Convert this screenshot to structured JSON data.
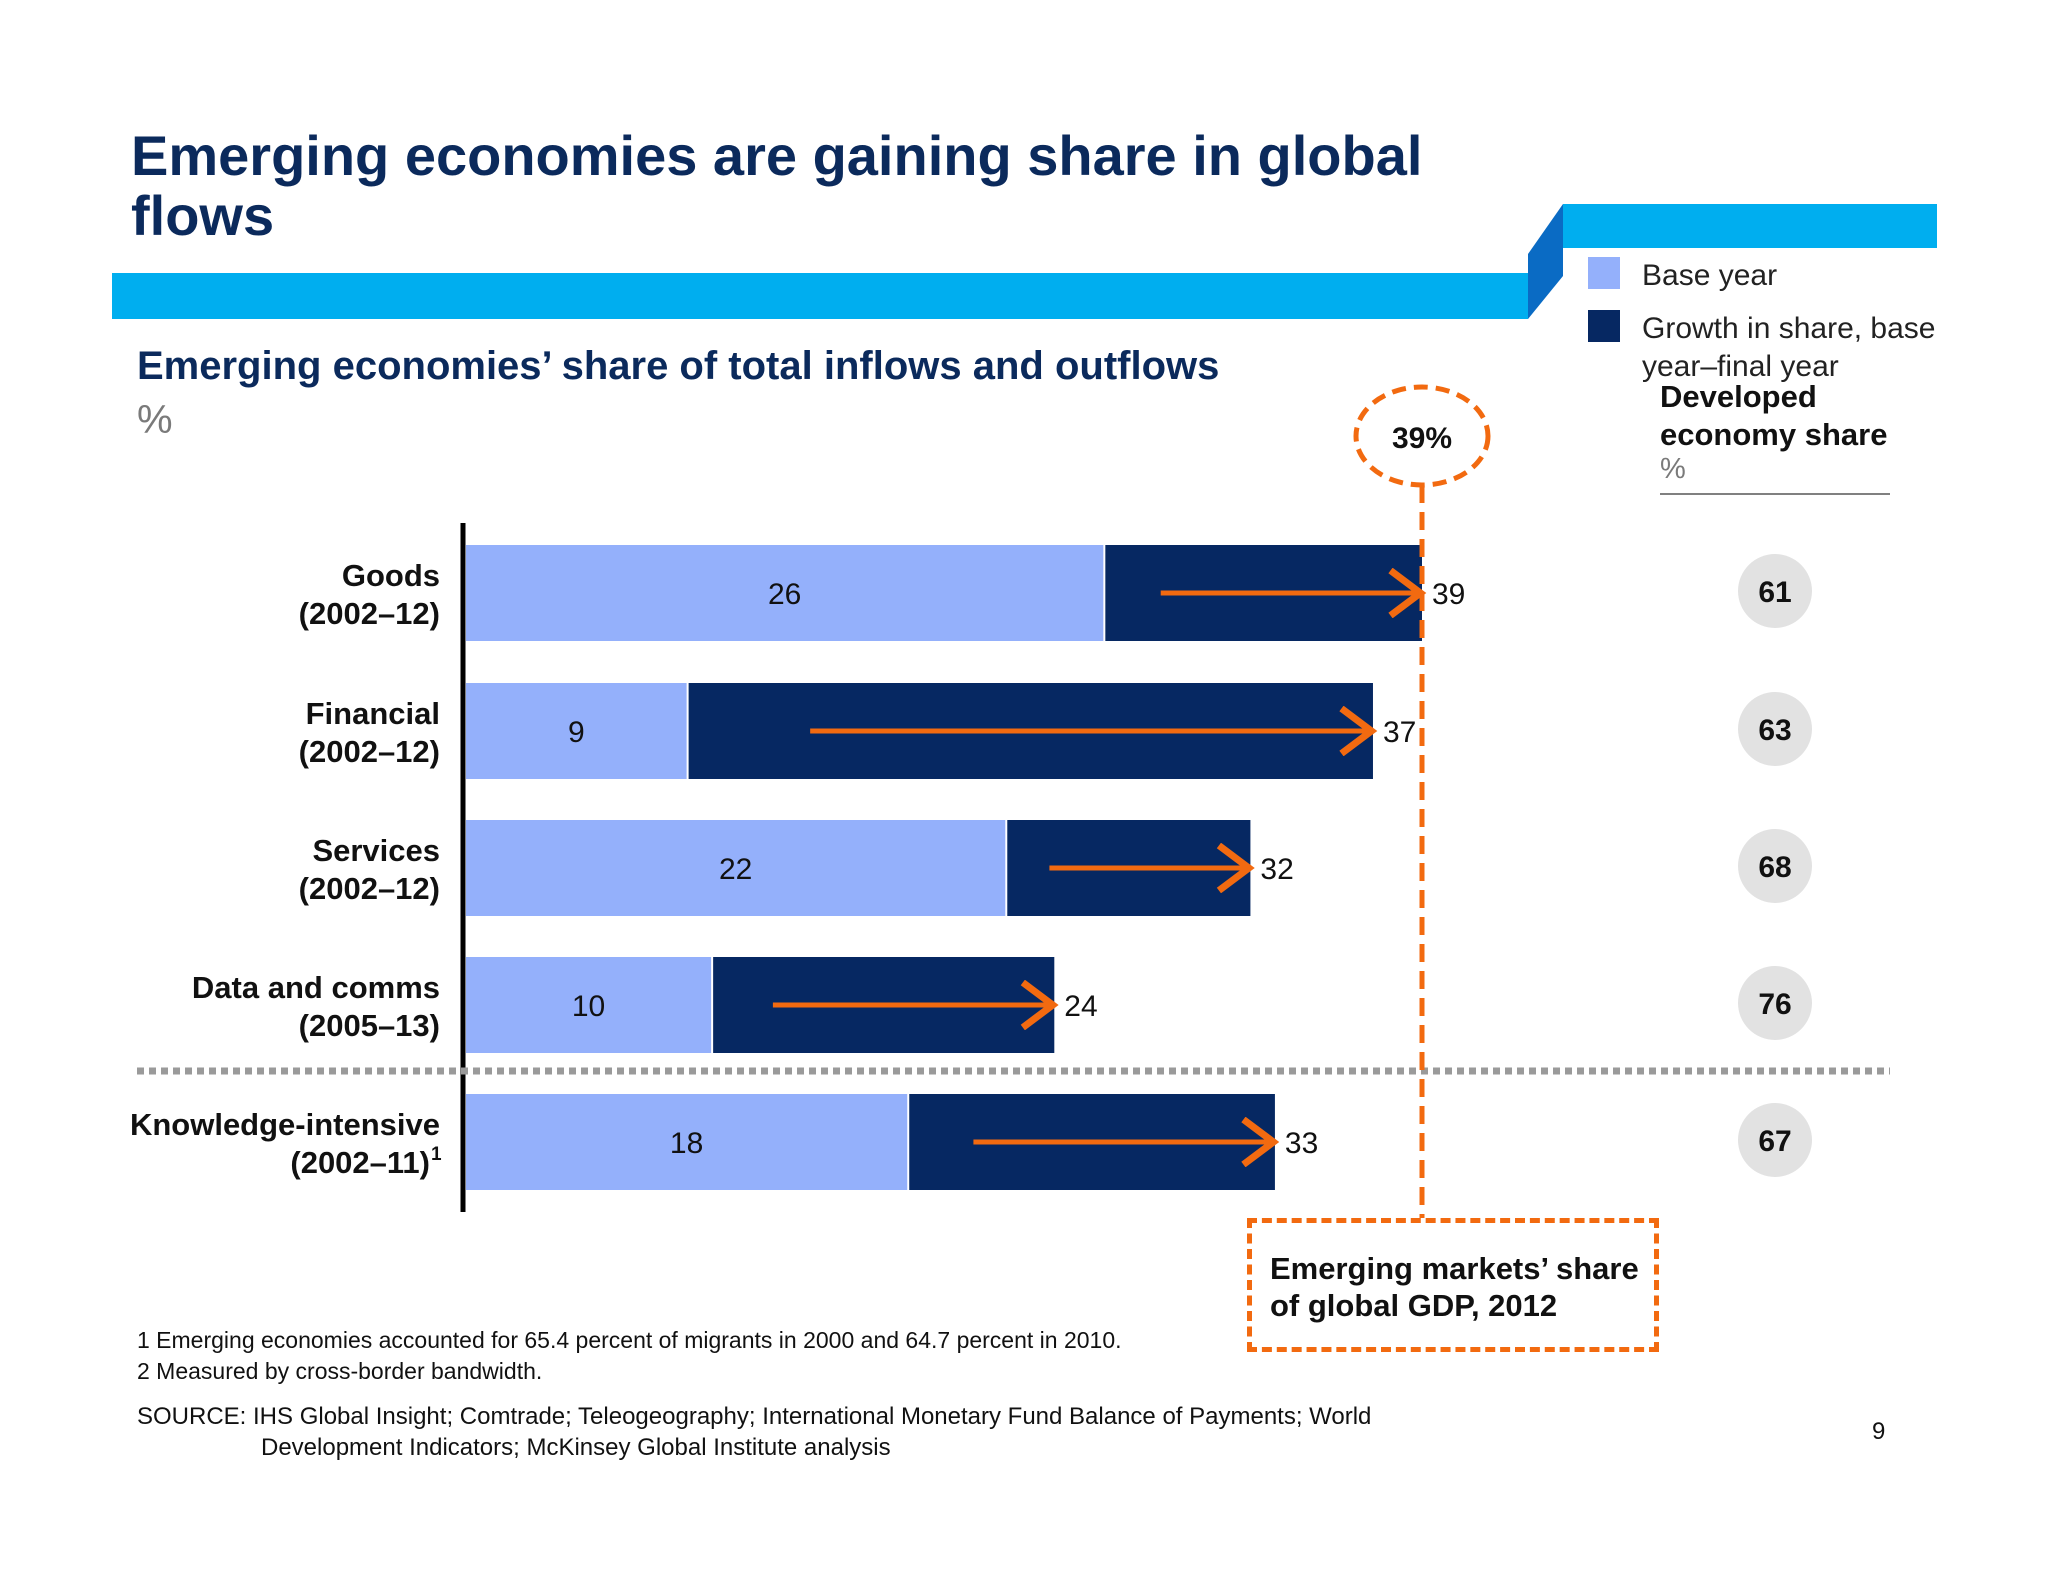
{
  "title": "Emerging economies are gaining share in global flows",
  "subtitle": "Emerging economies’ share of total inflows and outflows",
  "unit": "%",
  "legend": {
    "base_year": "Base year",
    "growth": "Growth in share, base year–final year"
  },
  "developed": {
    "heading": "Developed economy share",
    "unit": "%"
  },
  "gdp_callout": {
    "value_label": "39%",
    "value": 39,
    "text": "Emerging markets’ share of global GDP, 2012"
  },
  "footnotes": [
    "1 Emerging economies accounted for 65.4 percent of migrants in 2000 and 64.7 percent in 2010.",
    "2 Measured by cross-border bandwidth."
  ],
  "source": {
    "line1": "SOURCE: IHS Global Insight; Comtrade; Teleogeography; International Monetary Fund Balance of Payments; World",
    "line2": "Development Indicators; McKinsey Global Institute analysis"
  },
  "page_number": "9",
  "colors": {
    "title_navy": "#0b2a5c",
    "base_year": "#94b0fb",
    "growth": "#062862",
    "banner_blue": "#00aeef",
    "banner_dark": "#0a6bc4",
    "arrow_orange": "#f26a10",
    "circle_grey": "#e2e2e2"
  },
  "chart_data": {
    "type": "bar",
    "orientation": "horizontal",
    "stacked": true,
    "categories": [
      {
        "name": "Goods",
        "period": "(2002–12)",
        "footnote": ""
      },
      {
        "name": "Financial",
        "period": "(2002–12)",
        "footnote": ""
      },
      {
        "name": "Services",
        "period": "(2002–12)",
        "footnote": ""
      },
      {
        "name": "Data and comms",
        "period": "(2005–13)",
        "footnote": ""
      },
      {
        "name": "Knowledge-intensive",
        "period": "(2002–11)",
        "footnote": "1"
      }
    ],
    "series": [
      {
        "name": "Base year",
        "values": [
          26,
          9,
          22,
          10,
          18
        ]
      },
      {
        "name": "Growth in share, base year–final year",
        "values": [
          13,
          28,
          10,
          14,
          15
        ]
      }
    ],
    "final_values": [
      39,
      37,
      32,
      24,
      33
    ],
    "developed_share": [
      61,
      63,
      68,
      76,
      67
    ],
    "reference_line": {
      "value": 39,
      "label": "39%"
    },
    "xlim": [
      0,
      39
    ],
    "grid": false,
    "legend_position": "top-right"
  }
}
